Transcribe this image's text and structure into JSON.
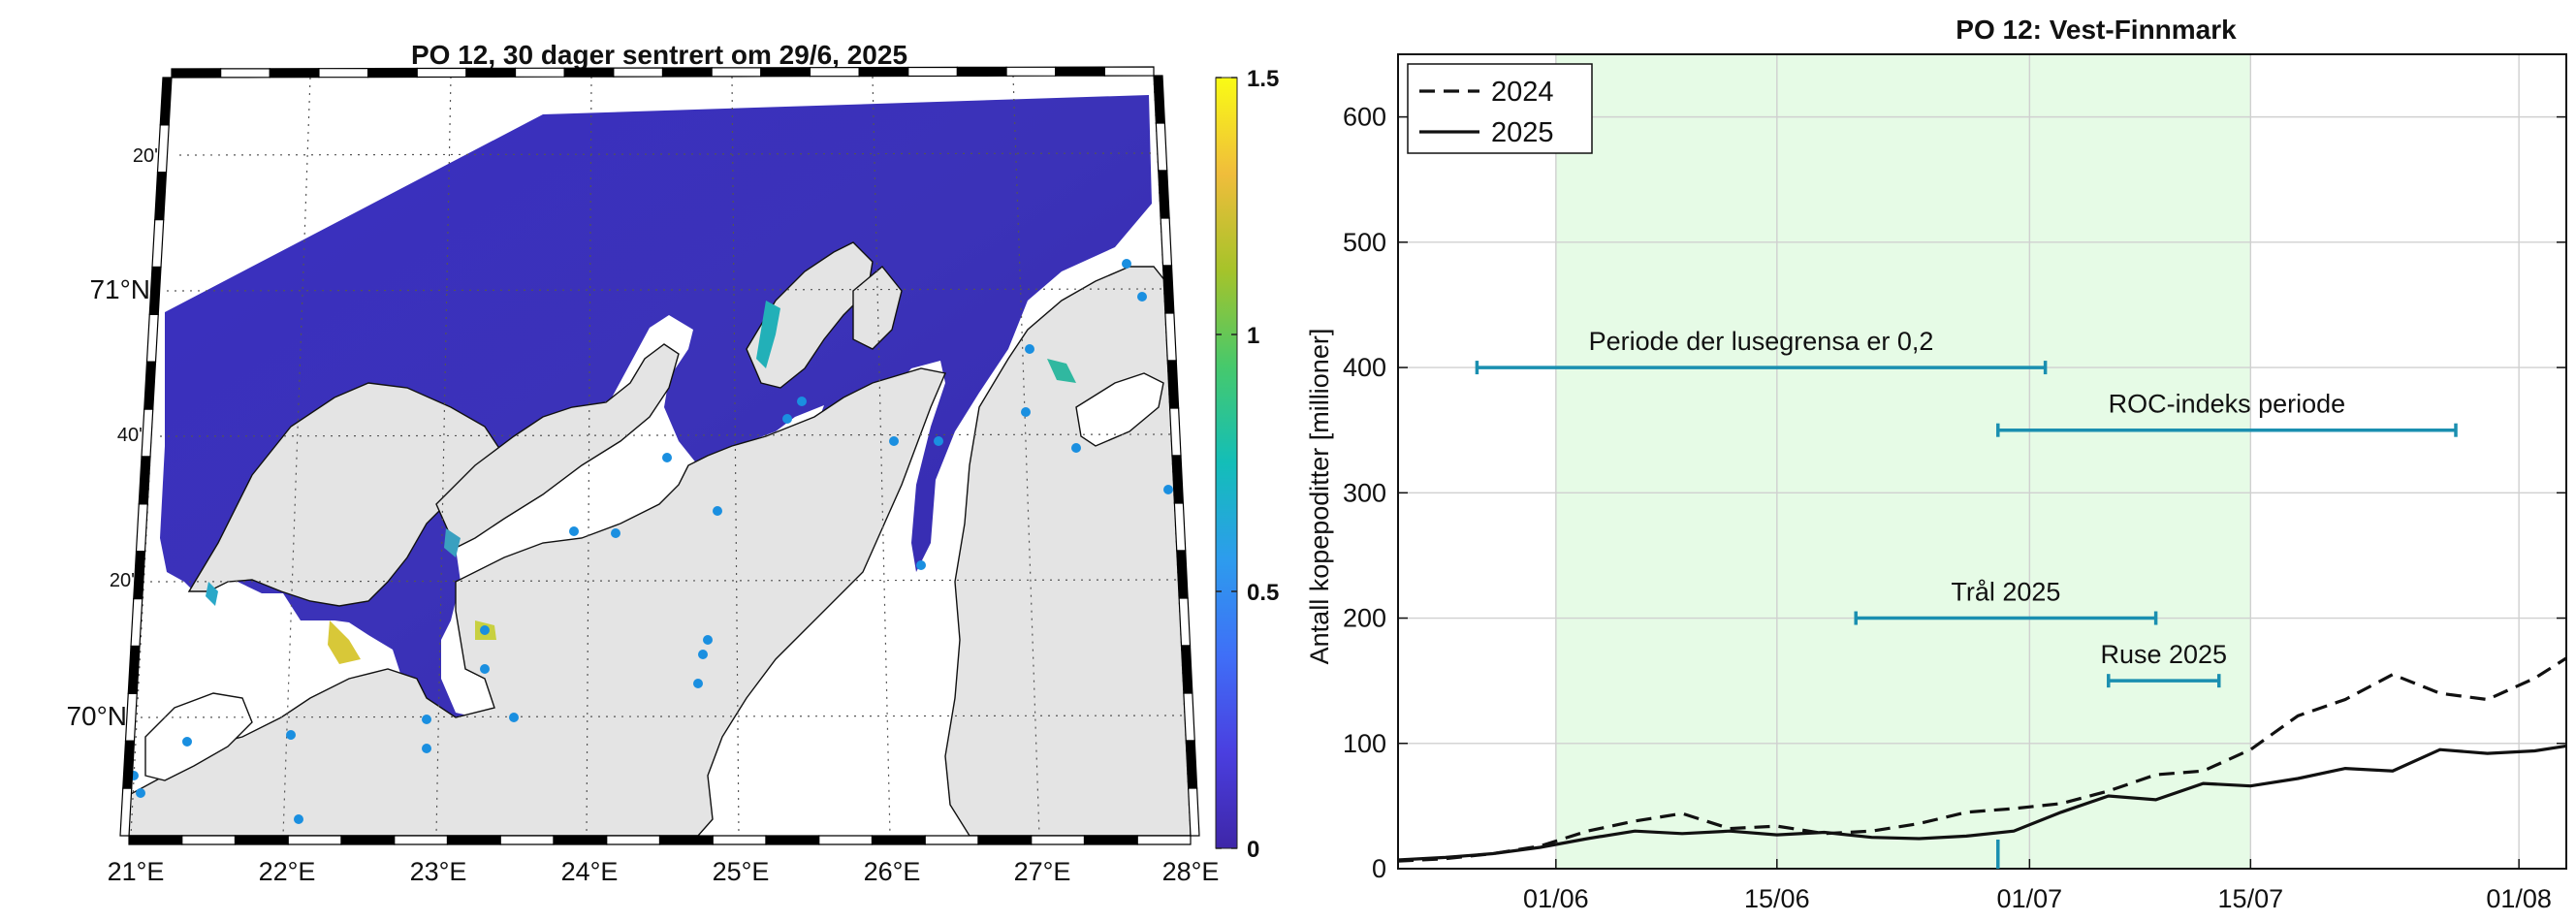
{
  "colors": {
    "sea_low": "#3a2aa8",
    "sea_mid": "#3f4fd8",
    "sea_hi": "#22b8b0",
    "land": "#e4e4e4",
    "coastline": "#111111",
    "station": "#1a8fe0",
    "period_bar": "#1a8fb0",
    "green_span": "#e6fbe6",
    "grid": "#d0d0d0"
  },
  "map": {
    "title": "PO 12, 30 dager sentrert om 29/6, 2025",
    "lon_labels": [
      "21°E",
      "22°E",
      "23°E",
      "24°E",
      "25°E",
      "26°E",
      "27°E",
      "28°E"
    ],
    "lat_labels": [
      {
        "text": "20'",
        "major": false
      },
      {
        "text": "71°N",
        "major": true
      },
      {
        "text": "40'",
        "major": false
      },
      {
        "text": "20'",
        "major": false
      },
      {
        "text": "70°N",
        "major": true
      }
    ],
    "colorbar": {
      "ticks": [
        "1.5",
        "1",
        "0.5",
        "0"
      ],
      "colormap": [
        "#3e26a8",
        "#4a3fe0",
        "#3f6ff7",
        "#2d9ced",
        "#13beb8",
        "#46c96c",
        "#a6c32a",
        "#f0bd3b",
        "#f9fb15"
      ]
    }
  },
  "chart_data": {
    "type": "line",
    "title": "PO 12: Vest-Finnmark",
    "xlabel": "",
    "ylabel": "Antall kopepoditter [millioner]",
    "ylim": [
      0,
      650
    ],
    "xlim": [
      "2025-05-22",
      "2025-08-04"
    ],
    "grid": true,
    "legend_placement": "top-left",
    "x_tick_labels": [
      "01/06",
      "15/06",
      "01/07",
      "15/07",
      "01/08"
    ],
    "x_ticks": [
      "2025-06-01",
      "2025-06-15",
      "2025-07-01",
      "2025-07-15",
      "2025-08-01"
    ],
    "y_ticks": [
      0,
      100,
      200,
      300,
      400,
      500,
      600
    ],
    "highlight_span": [
      "2025-06-01",
      "2025-07-15"
    ],
    "marker_date": "2025-06-29",
    "series": [
      {
        "name": "2024",
        "style": "dashed",
        "x": [
          "2025-05-22",
          "2025-05-25",
          "2025-05-28",
          "2025-05-31",
          "2025-06-03",
          "2025-06-06",
          "2025-06-09",
          "2025-06-12",
          "2025-06-15",
          "2025-06-18",
          "2025-06-21",
          "2025-06-24",
          "2025-06-27",
          "2025-06-30",
          "2025-07-03",
          "2025-07-06",
          "2025-07-09",
          "2025-07-12",
          "2025-07-15",
          "2025-07-18",
          "2025-07-21",
          "2025-07-24",
          "2025-07-27",
          "2025-07-30",
          "2025-08-02",
          "2025-08-04"
        ],
        "values": [
          6,
          8,
          12,
          18,
          30,
          38,
          44,
          32,
          34,
          28,
          30,
          36,
          45,
          48,
          52,
          62,
          75,
          78,
          95,
          122,
          135,
          155,
          140,
          135,
          152,
          168
        ]
      },
      {
        "name": "2025",
        "style": "solid",
        "x": [
          "2025-05-22",
          "2025-05-25",
          "2025-05-28",
          "2025-05-31",
          "2025-06-03",
          "2025-06-06",
          "2025-06-09",
          "2025-06-12",
          "2025-06-15",
          "2025-06-18",
          "2025-06-21",
          "2025-06-24",
          "2025-06-27",
          "2025-06-30",
          "2025-07-03",
          "2025-07-06",
          "2025-07-09",
          "2025-07-12",
          "2025-07-15",
          "2025-07-18",
          "2025-07-21",
          "2025-07-24",
          "2025-07-27",
          "2025-07-30",
          "2025-08-02",
          "2025-08-04"
        ],
        "values": [
          7,
          9,
          12,
          17,
          24,
          30,
          28,
          30,
          27,
          29,
          25,
          24,
          26,
          30,
          45,
          58,
          55,
          68,
          66,
          72,
          80,
          78,
          95,
          92,
          94,
          98
        ]
      }
    ],
    "periods": [
      {
        "label": "Periode der lusegrensa er 0,2",
        "start": "2025-05-27",
        "end": "2025-07-02",
        "y": 400
      },
      {
        "label": "ROC-indeks periode",
        "start": "2025-06-29",
        "end": "2025-07-28",
        "y": 350
      },
      {
        "label": "Trål 2025",
        "start": "2025-06-20",
        "end": "2025-07-09",
        "y": 200
      },
      {
        "label": "Ruse 2025",
        "start": "2025-07-06",
        "end": "2025-07-13",
        "y": 150
      }
    ]
  }
}
